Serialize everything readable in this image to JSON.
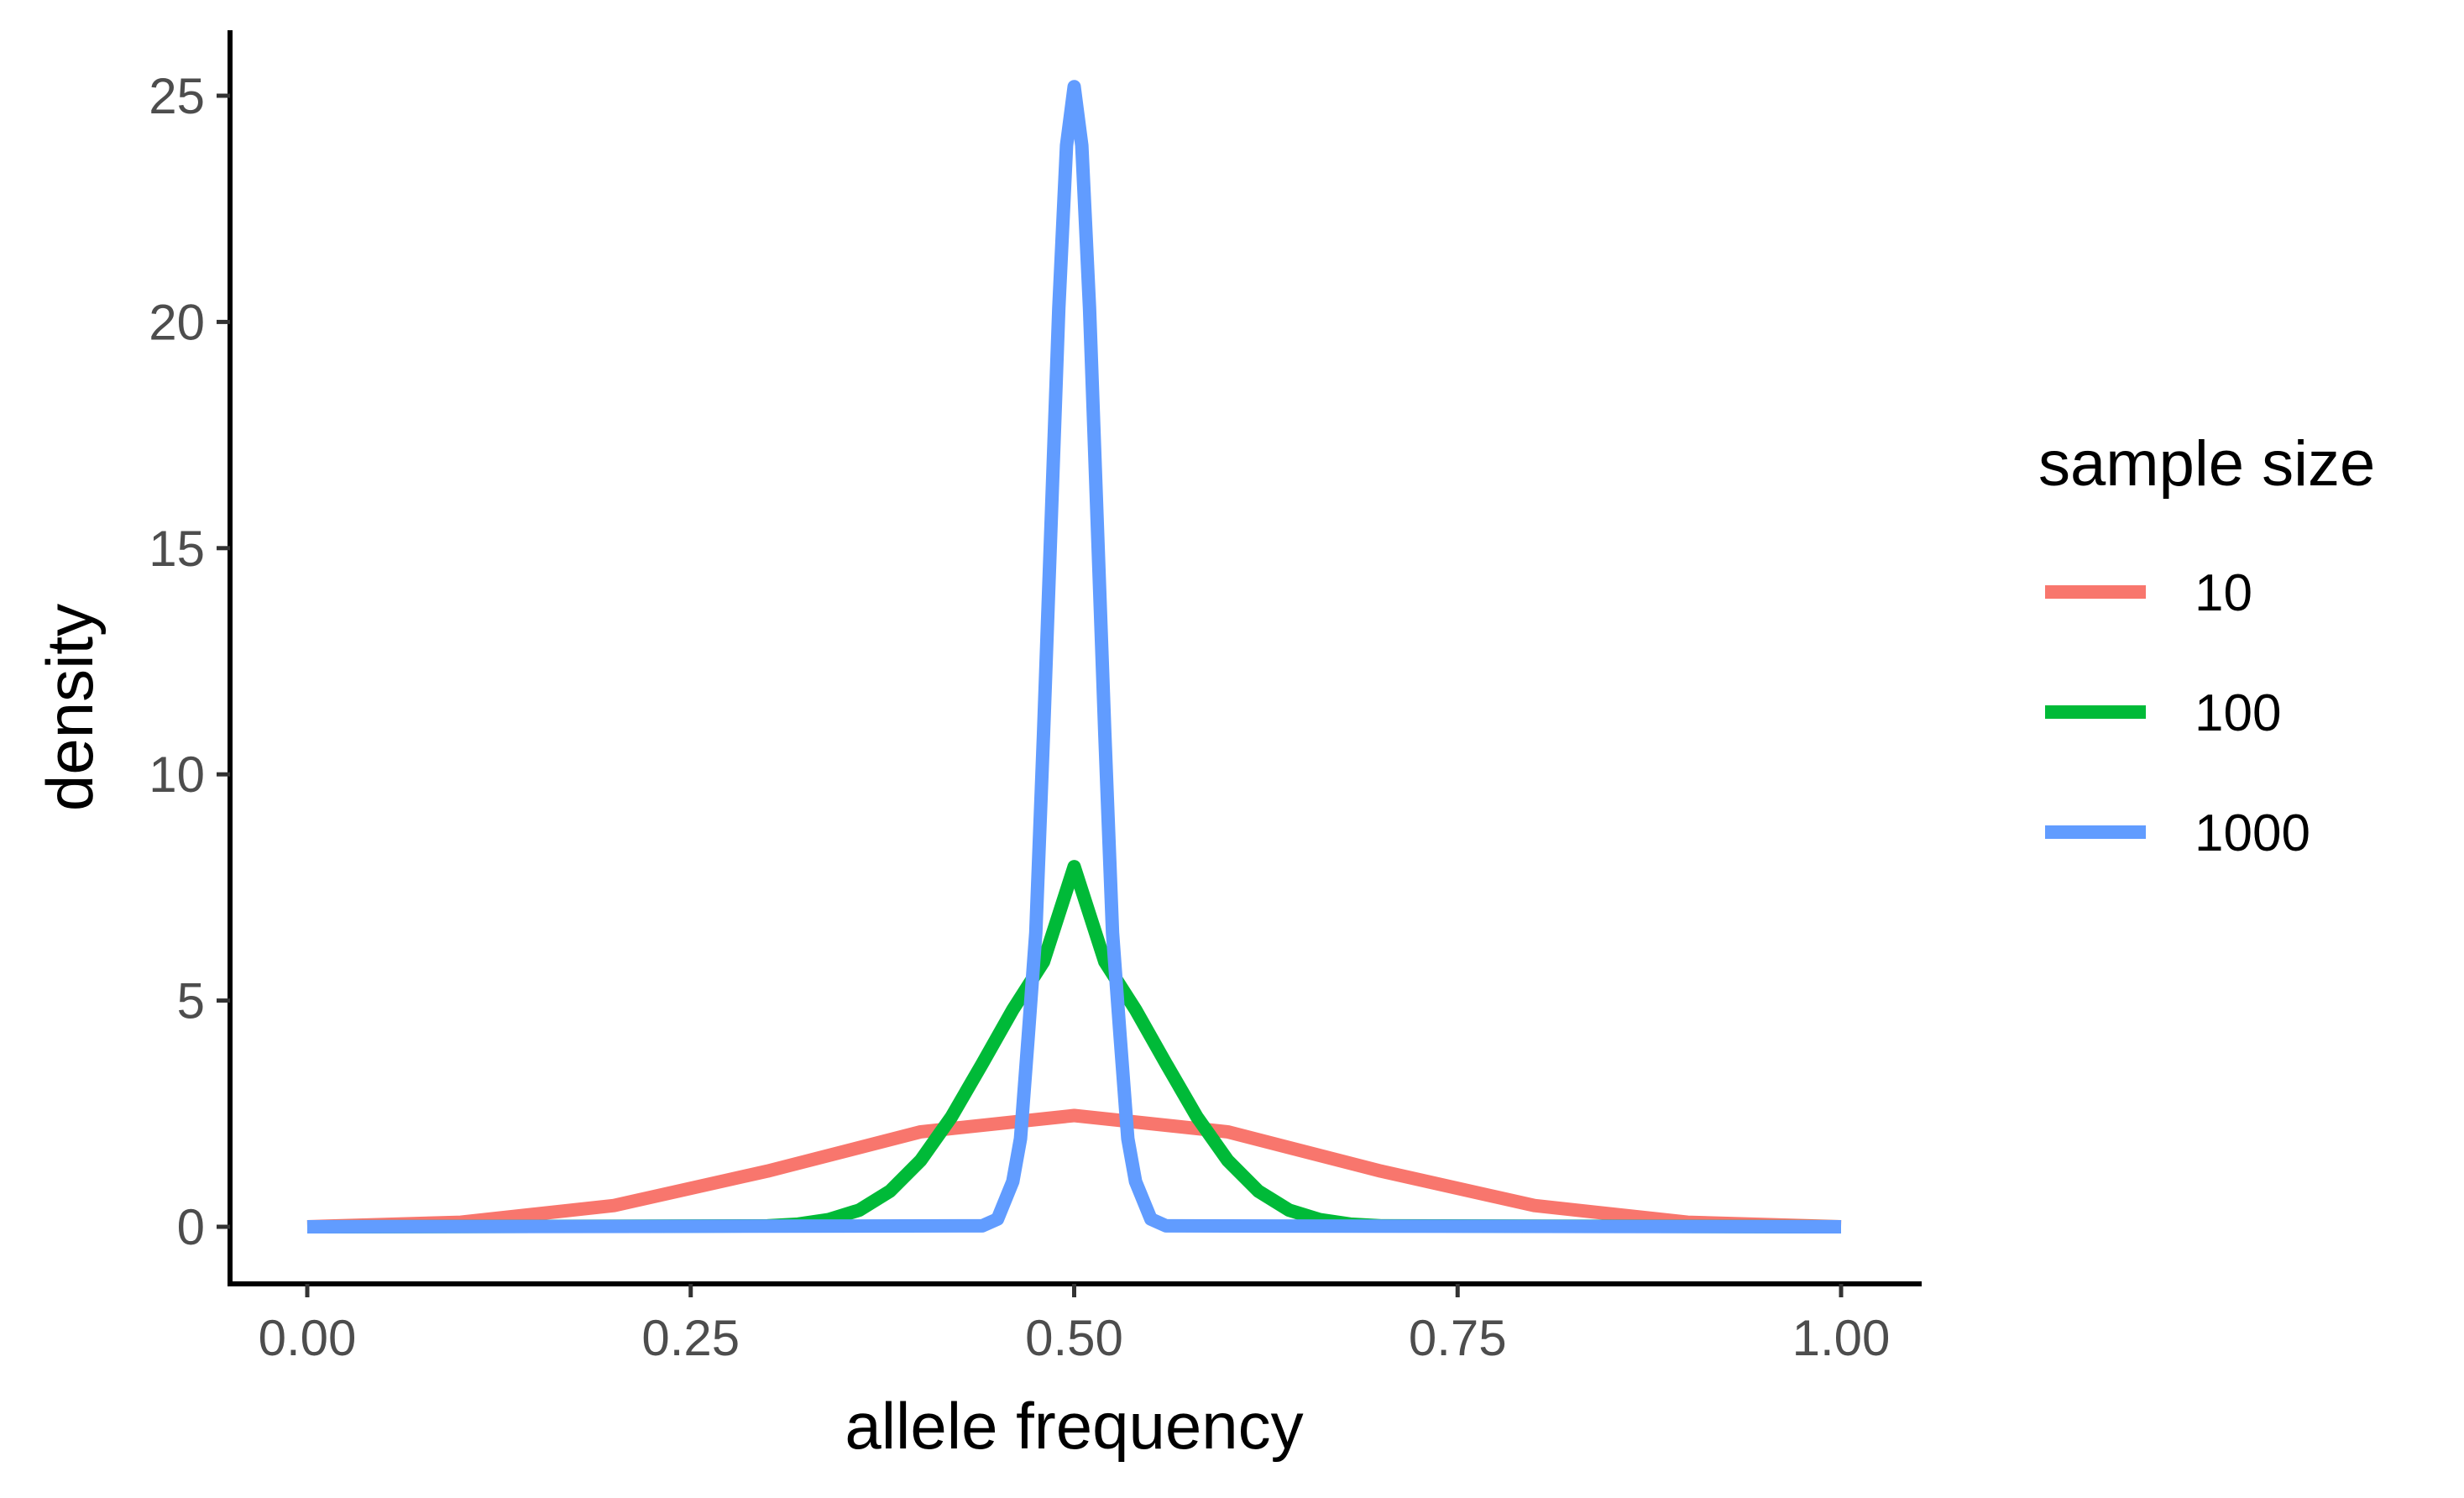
{
  "chart_data": {
    "type": "line",
    "xlabel": "allele frequency",
    "ylabel": "density",
    "xlim": [
      0,
      1
    ],
    "ylim": [
      0,
      25.5
    ],
    "x_ticks": [
      0,
      0.25,
      0.5,
      0.75,
      1
    ],
    "x_tick_labels": [
      "0.00",
      "0.25",
      "0.50",
      "0.75",
      "1.00"
    ],
    "y_ticks": [
      0,
      5,
      10,
      15,
      20,
      25
    ],
    "y_tick_labels": [
      "0",
      "5",
      "10",
      "15",
      "20",
      "25"
    ],
    "grid": false,
    "legend": {
      "title": "sample size",
      "position": "right"
    },
    "series": [
      {
        "name": "10",
        "color": "#F8766D",
        "x": [
          0,
          0.1,
          0.2,
          0.3,
          0.4,
          0.5,
          0.6,
          0.7,
          0.8,
          0.9,
          1.0
        ],
        "y": [
          0.0,
          0.1,
          0.47,
          1.23,
          2.1,
          2.46,
          2.1,
          1.23,
          0.47,
          0.1,
          0.0
        ]
      },
      {
        "name": "100",
        "color": "#00BA38",
        "x": [
          0,
          0.3,
          0.32,
          0.34,
          0.36,
          0.38,
          0.4,
          0.42,
          0.44,
          0.46,
          0.48,
          0.5,
          0.52,
          0.54,
          0.56,
          0.58,
          0.6,
          0.62,
          0.64,
          0.66,
          0.68,
          0.7,
          1.0
        ],
        "y": [
          0.0,
          0.02,
          0.06,
          0.16,
          0.37,
          0.79,
          1.47,
          2.43,
          3.6,
          4.8,
          5.86,
          7.96,
          5.86,
          4.8,
          3.6,
          2.43,
          1.47,
          0.79,
          0.37,
          0.16,
          0.06,
          0.02,
          0.0
        ]
      },
      {
        "name": "1000",
        "color": "#619CFF",
        "x": [
          0,
          0.44,
          0.45,
          0.46,
          0.465,
          0.47,
          0.475,
          0.48,
          0.485,
          0.49,
          0.495,
          0.5,
          0.505,
          0.51,
          0.515,
          0.52,
          0.525,
          0.53,
          0.535,
          0.54,
          0.55,
          0.56,
          1.0
        ],
        "y": [
          0.0,
          0.02,
          0.17,
          1.0,
          1.95,
          4.19,
          6.5,
          10.9,
          15.6,
          20.3,
          23.9,
          25.2,
          23.9,
          20.3,
          15.6,
          10.9,
          6.5,
          4.19,
          1.95,
          1.0,
          0.17,
          0.02,
          0.0
        ]
      }
    ]
  }
}
